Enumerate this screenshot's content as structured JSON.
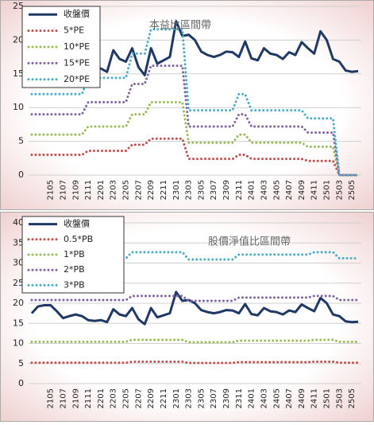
{
  "chart_data": [
    {
      "type": "line",
      "annotation": "本益比區間帶",
      "categories": [
        null,
        null,
        null,
        "2105",
        null,
        "2107",
        null,
        "2109",
        null,
        "2111",
        null,
        "2201",
        null,
        "2203",
        null,
        "2205",
        null,
        "2207",
        null,
        "2209",
        null,
        "2211",
        null,
        "2301",
        null,
        "2303",
        null,
        "2305",
        null,
        "2307",
        null,
        "2309",
        null,
        "2311",
        null,
        "2401",
        null,
        "2403",
        null,
        "2405",
        null,
        "2407",
        null,
        "2409",
        null,
        "2411",
        null,
        "2501",
        null,
        "2503",
        null,
        "2505",
        null
      ],
      "ylim": [
        0,
        25
      ],
      "yticks": [
        0,
        5,
        10,
        15,
        20,
        25
      ],
      "grid": true,
      "legend": "upper left",
      "series": [
        {
          "name": "收盤價",
          "color": "#1f3864",
          "values": [
            17.5,
            19.2,
            19.5,
            19.5,
            18.0,
            16.3,
            16.8,
            17.2,
            16.8,
            15.8,
            15.6,
            15.8,
            15.3,
            18.5,
            17.2,
            16.8,
            18.8,
            16.0,
            14.8,
            18.8,
            16.5,
            17.0,
            17.5,
            22.8,
            20.6,
            20.8,
            20.0,
            18.3,
            17.8,
            17.5,
            17.8,
            18.3,
            18.2,
            17.5,
            19.8,
            17.3,
            17.0,
            18.8,
            18.0,
            17.8,
            17.2,
            18.2,
            17.8,
            19.7,
            18.8,
            18.0,
            21.3,
            20.0,
            17.2,
            16.8,
            15.5,
            15.3,
            15.4
          ]
        },
        {
          "name": "5*PE",
          "color": "#c0504d",
          "values": [
            3.0,
            3.0,
            3.0,
            3.0,
            3.0,
            3.0,
            3.0,
            3.0,
            3.0,
            3.6,
            3.6,
            3.6,
            3.6,
            3.6,
            3.6,
            3.6,
            4.5,
            4.5,
            4.5,
            5.4,
            5.4,
            5.4,
            5.4,
            5.4,
            5.4,
            2.4,
            2.4,
            2.4,
            2.4,
            2.4,
            2.4,
            2.4,
            2.4,
            3.0,
            3.0,
            2.4,
            2.4,
            2.4,
            2.4,
            2.4,
            2.4,
            2.4,
            2.4,
            2.4,
            2.1,
            2.1,
            2.1,
            2.1,
            2.1,
            0,
            0,
            0,
            0
          ]
        },
        {
          "name": "10*PE",
          "color": "#9bbb59",
          "values": [
            6,
            6,
            6,
            6,
            6,
            6,
            6,
            6,
            6,
            7.2,
            7.2,
            7.2,
            7.2,
            7.2,
            7.2,
            7.2,
            9,
            9,
            9,
            10.8,
            10.8,
            10.8,
            10.8,
            10.8,
            10.8,
            4.8,
            4.8,
            4.8,
            4.8,
            4.8,
            4.8,
            4.8,
            4.8,
            6,
            6,
            4.8,
            4.8,
            4.8,
            4.8,
            4.8,
            4.8,
            4.8,
            4.8,
            4.8,
            4.2,
            4.2,
            4.2,
            4.2,
            4.2,
            0,
            0,
            0,
            0
          ]
        },
        {
          "name": "15*PE",
          "color": "#8064a2",
          "values": [
            9,
            9,
            9,
            9,
            9,
            9,
            9,
            9,
            9,
            10.8,
            10.8,
            10.8,
            10.8,
            10.8,
            10.8,
            10.8,
            13.5,
            13.5,
            13.5,
            16.2,
            16.2,
            16.2,
            16.2,
            16.2,
            16.2,
            7.2,
            7.2,
            7.2,
            7.2,
            7.2,
            7.2,
            7.2,
            7.2,
            9,
            9,
            7.2,
            7.2,
            7.2,
            7.2,
            7.2,
            7.2,
            7.2,
            7.2,
            7.2,
            6.3,
            6.3,
            6.3,
            6.3,
            6.3,
            0,
            0,
            0,
            0
          ]
        },
        {
          "name": "20*PE",
          "color": "#4bacc6",
          "values": [
            12,
            12,
            12,
            12,
            12,
            12,
            12,
            12,
            12,
            14.4,
            14.4,
            14.4,
            14.4,
            14.4,
            14.4,
            14.4,
            18,
            18,
            18,
            21.6,
            21.6,
            21.6,
            21.6,
            21.6,
            21.6,
            9.6,
            9.6,
            9.6,
            9.6,
            9.6,
            9.6,
            9.6,
            9.6,
            12,
            12,
            9.6,
            9.6,
            9.6,
            9.6,
            9.6,
            9.6,
            9.6,
            9.6,
            9.6,
            8.4,
            8.4,
            8.4,
            8.4,
            8.4,
            0,
            0,
            0,
            0
          ]
        }
      ]
    },
    {
      "type": "line",
      "annotation": "股價淨值比區間帶",
      "categories": [
        null,
        null,
        null,
        "2105",
        null,
        "2107",
        null,
        "2109",
        null,
        "2111",
        null,
        "2201",
        null,
        "2203",
        null,
        "2205",
        null,
        "2207",
        null,
        "2209",
        null,
        "2211",
        null,
        "2301",
        null,
        "2303",
        null,
        "2305",
        null,
        "2307",
        null,
        "2309",
        null,
        "2311",
        null,
        "2401",
        null,
        "2403",
        null,
        "2405",
        null,
        "2407",
        null,
        "2409",
        null,
        "2411",
        null,
        "2501",
        null,
        "2503",
        null,
        "2505",
        null
      ],
      "ylim": [
        0,
        40
      ],
      "yticks": [
        0,
        5,
        10,
        15,
        20,
        25,
        30,
        35,
        40
      ],
      "grid": true,
      "legend": "upper left",
      "series": [
        {
          "name": "收盤價",
          "color": "#1f3864",
          "values": [
            17.5,
            19.2,
            19.5,
            19.5,
            18.0,
            16.3,
            16.8,
            17.2,
            16.8,
            15.8,
            15.6,
            15.8,
            15.3,
            18.5,
            17.2,
            16.8,
            18.8,
            16.0,
            14.8,
            18.8,
            16.5,
            17.0,
            17.5,
            22.8,
            20.6,
            20.8,
            20.0,
            18.3,
            17.8,
            17.5,
            17.8,
            18.3,
            18.2,
            17.5,
            19.8,
            17.3,
            17.0,
            18.8,
            18.0,
            17.8,
            17.2,
            18.2,
            17.8,
            19.7,
            18.8,
            18.0,
            21.3,
            20.0,
            17.2,
            16.8,
            15.5,
            15.3,
            15.4
          ]
        },
        {
          "name": "0.5*PB",
          "color": "#c0504d",
          "values": [
            5.2,
            5.2,
            5.2,
            5.2,
            5.2,
            5.2,
            5.2,
            5.2,
            5.2,
            5.2,
            5.2,
            5.2,
            5.2,
            5.2,
            5.2,
            5.2,
            5.45,
            5.45,
            5.45,
            5.45,
            5.45,
            5.45,
            5.45,
            5.45,
            5.45,
            5.15,
            5.15,
            5.15,
            5.15,
            5.15,
            5.15,
            5.15,
            5.15,
            5.35,
            5.35,
            5.35,
            5.35,
            5.35,
            5.35,
            5.35,
            5.35,
            5.35,
            5.35,
            5.35,
            5.35,
            5.45,
            5.45,
            5.45,
            5.45,
            5.2,
            5.2,
            5.2,
            5.2
          ]
        },
        {
          "name": "1*PB",
          "color": "#9bbb59",
          "values": [
            10.4,
            10.4,
            10.4,
            10.4,
            10.4,
            10.4,
            10.4,
            10.4,
            10.4,
            10.4,
            10.4,
            10.4,
            10.4,
            10.4,
            10.4,
            10.4,
            10.9,
            10.9,
            10.9,
            10.9,
            10.9,
            10.9,
            10.9,
            10.9,
            10.9,
            10.3,
            10.3,
            10.3,
            10.3,
            10.3,
            10.3,
            10.3,
            10.3,
            10.7,
            10.7,
            10.7,
            10.7,
            10.7,
            10.7,
            10.7,
            10.7,
            10.7,
            10.7,
            10.7,
            10.7,
            10.9,
            10.9,
            10.9,
            10.9,
            10.4,
            10.4,
            10.4,
            10.4
          ]
        },
        {
          "name": "2*PB",
          "color": "#8064a2",
          "values": [
            20.8,
            20.8,
            20.8,
            20.8,
            20.8,
            20.8,
            20.8,
            20.8,
            20.8,
            20.8,
            20.8,
            20.8,
            20.8,
            20.8,
            20.8,
            20.8,
            21.8,
            21.8,
            21.8,
            21.8,
            21.8,
            21.8,
            21.8,
            21.8,
            21.8,
            20.6,
            20.6,
            20.6,
            20.6,
            20.6,
            20.6,
            20.6,
            20.6,
            21.4,
            21.4,
            21.4,
            21.4,
            21.4,
            21.4,
            21.4,
            21.4,
            21.4,
            21.4,
            21.4,
            21.4,
            21.8,
            21.8,
            21.8,
            21.8,
            20.8,
            20.8,
            20.8,
            20.8
          ]
        },
        {
          "name": "3*PB",
          "color": "#4bacc6",
          "values": [
            31.2,
            31.2,
            31.2,
            31.2,
            31.2,
            31.2,
            31.2,
            31.2,
            31.2,
            31.2,
            31.2,
            31.2,
            31.2,
            31.2,
            31.2,
            31.2,
            32.7,
            32.7,
            32.7,
            32.7,
            32.7,
            32.7,
            32.7,
            32.7,
            32.7,
            30.9,
            30.9,
            30.9,
            30.9,
            30.9,
            30.9,
            30.9,
            30.9,
            32.1,
            32.1,
            32.1,
            32.1,
            32.1,
            32.1,
            32.1,
            32.1,
            32.1,
            32.1,
            32.1,
            32.1,
            32.7,
            32.7,
            32.7,
            32.7,
            31.2,
            31.2,
            31.2,
            31.2
          ]
        }
      ]
    }
  ]
}
